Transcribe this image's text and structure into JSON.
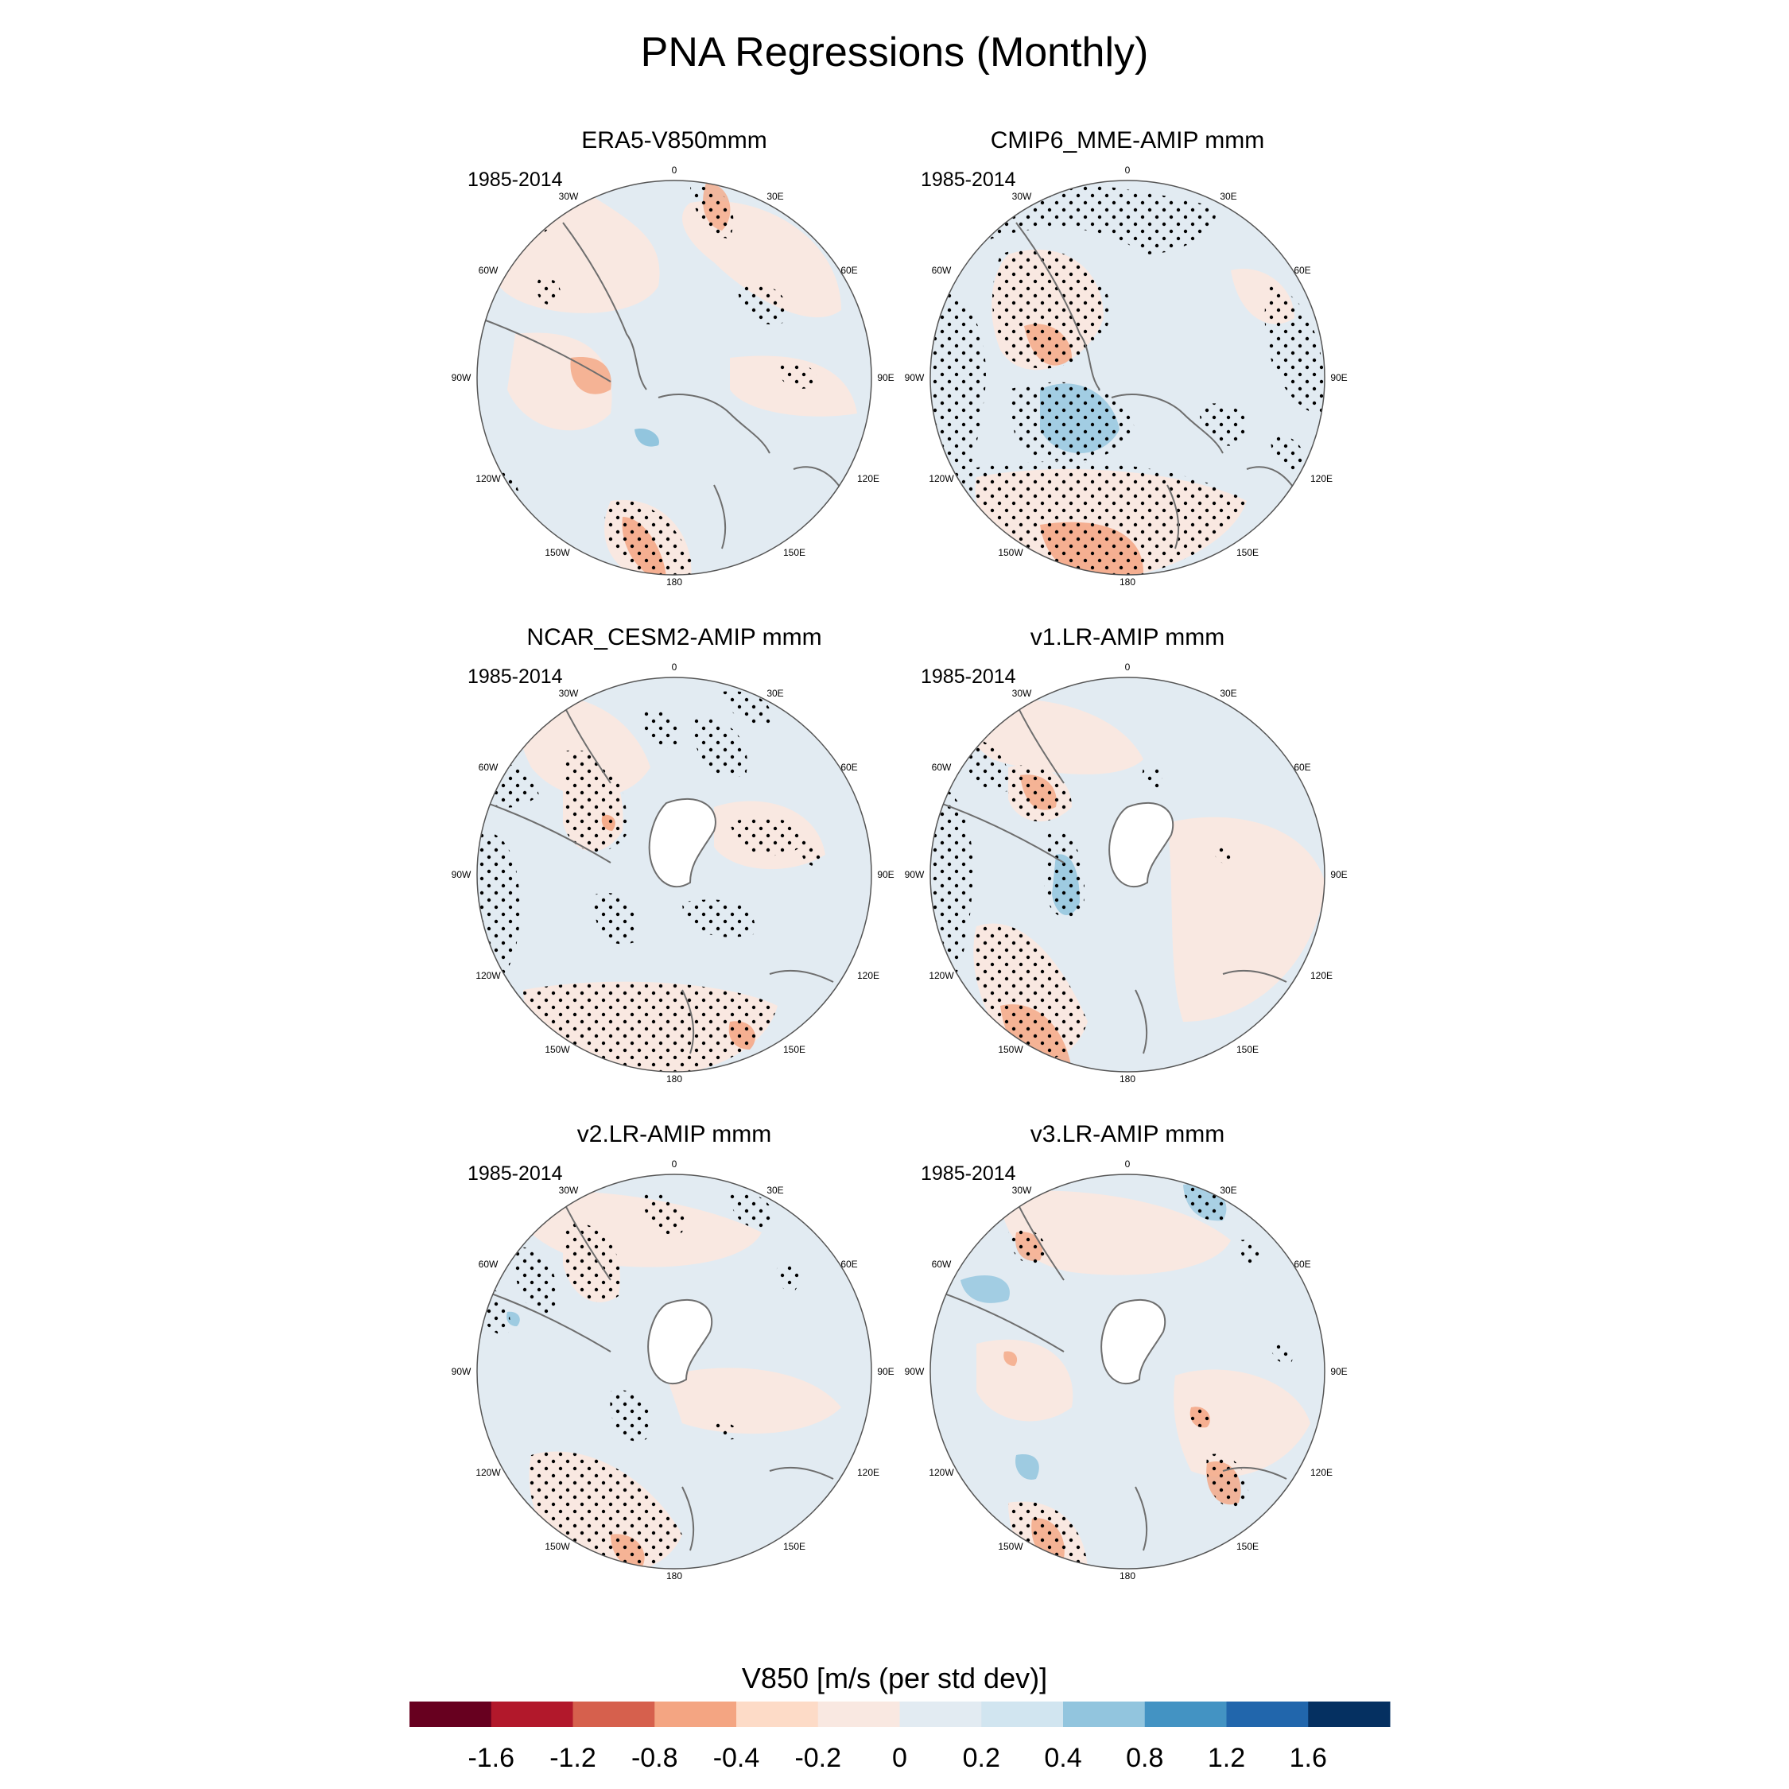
{
  "figure": {
    "title": "PNA Regressions (Monthly)",
    "panels": [
      {
        "title": "ERA5-V850mmm",
        "period": "1985-2014",
        "antarctic_mask": false
      },
      {
        "title": "CMIP6_MME-AMIP  mmm",
        "period": "1985-2014",
        "antarctic_mask": false
      },
      {
        "title": "NCAR_CESM2-AMIP  mmm",
        "period": "1985-2014",
        "antarctic_mask": true
      },
      {
        "title": "v1.LR-AMIP  mmm",
        "period": "1985-2014",
        "antarctic_mask": true
      },
      {
        "title": "v2.LR-AMIP  mmm",
        "period": "1985-2014",
        "antarctic_mask": true
      },
      {
        "title": "v3.LR-AMIP  mmm",
        "period": "1985-2014",
        "antarctic_mask": true
      }
    ],
    "longitude_labels": [
      "0",
      "30E",
      "60E",
      "90E",
      "120E",
      "150E",
      "180",
      "150W",
      "120W",
      "90W",
      "60W",
      "30W"
    ]
  },
  "colorbar": {
    "title": "V850 [m/s (per std dev)]",
    "ticks": [
      "-1.6",
      "-1.2",
      "-0.8",
      "-0.4",
      "-0.2",
      "0",
      "0.2",
      "0.4",
      "0.8",
      "1.2",
      "1.6"
    ],
    "colors": [
      "#67001f",
      "#b2182b",
      "#d6604d",
      "#f4a582",
      "#fddbc7",
      "#f9e8e1",
      "#e2ebf2",
      "#d1e5f0",
      "#92c5de",
      "#4393c3",
      "#2166ac",
      "#053061"
    ]
  },
  "chart_data": {
    "type": "heatmap",
    "title": "PNA Regressions (Monthly)",
    "variable": "V850 [m/s (per std dev)]",
    "levels": [
      -1.6,
      -1.2,
      -0.8,
      -0.4,
      -0.2,
      0,
      0.2,
      0.4,
      0.8,
      1.2,
      1.6
    ],
    "period": "1985-2014",
    "projection": "south polar stereographic"
  }
}
